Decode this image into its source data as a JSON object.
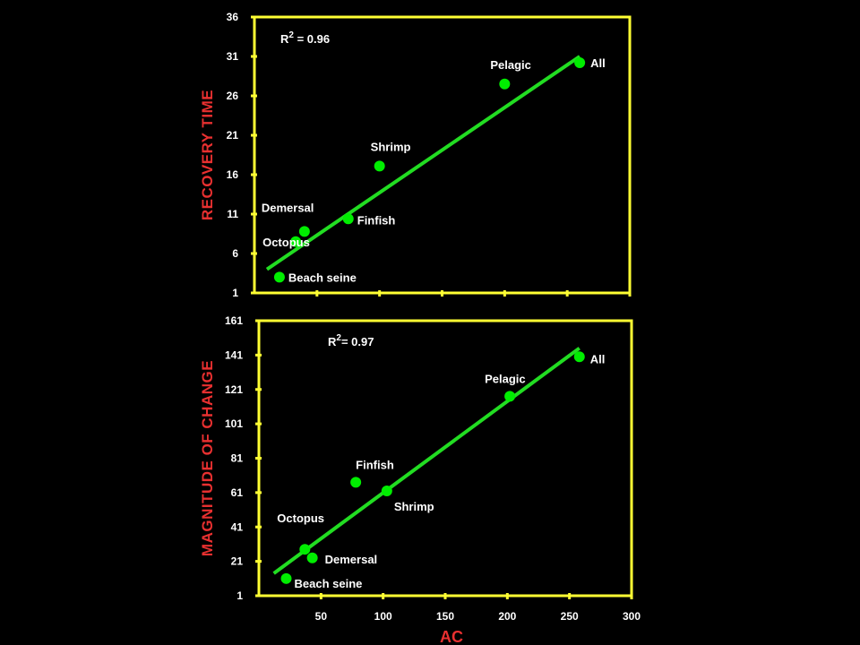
{
  "colors": {
    "background": "#000000",
    "frame": "#ffff33",
    "points": "#00ee00",
    "fit_line": "#22dd22",
    "axis_title": "#e83030",
    "text": "#ffffff"
  },
  "x_axis": {
    "label": "AC",
    "ticks": [
      "50",
      "100",
      "150",
      "200",
      "250",
      "300"
    ],
    "range": [
      0,
      300
    ]
  },
  "chart_data": [
    {
      "type": "scatter",
      "ylabel": "RECOVERY TIME",
      "xlabel": "",
      "r2_label": "R",
      "r2_sup": "2",
      "r2_value": " = 0.96",
      "xlim": [
        0,
        300
      ],
      "ylim": [
        1,
        36
      ],
      "y_ticks": [
        "1",
        "6",
        "11",
        "16",
        "21",
        "26",
        "31",
        "36"
      ],
      "show_x_tick_labels": false,
      "points": [
        {
          "label": "Beach seine",
          "x": 20,
          "y": 3
        },
        {
          "label": "Octopus",
          "x": 33,
          "y": 7.5
        },
        {
          "label": "Demersal",
          "x": 40,
          "y": 8.8
        },
        {
          "label": "Finfish",
          "x": 75,
          "y": 10.4
        },
        {
          "label": "Shrimp",
          "x": 100,
          "y": 17.1
        },
        {
          "label": "Pelagic",
          "x": 200,
          "y": 27.5
        },
        {
          "label": "All",
          "x": 260,
          "y": 30.2
        }
      ],
      "fit_line": {
        "x": [
          10,
          260
        ],
        "y": [
          4,
          31
        ]
      }
    },
    {
      "type": "scatter",
      "ylabel": "MAGNITUDE OF CHANGE",
      "xlabel": "AC",
      "r2_label": "R",
      "r2_sup": "2",
      "r2_value": "= 0.97",
      "xlim": [
        0,
        300
      ],
      "ylim": [
        1,
        161
      ],
      "y_ticks": [
        "1",
        "21",
        "41",
        "61",
        "81",
        "101",
        "121",
        "141",
        "161"
      ],
      "show_x_tick_labels": true,
      "points": [
        {
          "label": "Beach seine",
          "x": 22,
          "y": 11
        },
        {
          "label": "Octopus",
          "x": 37,
          "y": 28
        },
        {
          "label": "Demersal",
          "x": 43,
          "y": 23
        },
        {
          "label": "Finfish",
          "x": 78,
          "y": 67
        },
        {
          "label": "Shrimp",
          "x": 103,
          "y": 62
        },
        {
          "label": "Pelagic",
          "x": 202,
          "y": 117
        },
        {
          "label": "All",
          "x": 258,
          "y": 140
        }
      ],
      "fit_line": {
        "x": [
          12,
          258
        ],
        "y": [
          14,
          145
        ]
      }
    }
  ]
}
